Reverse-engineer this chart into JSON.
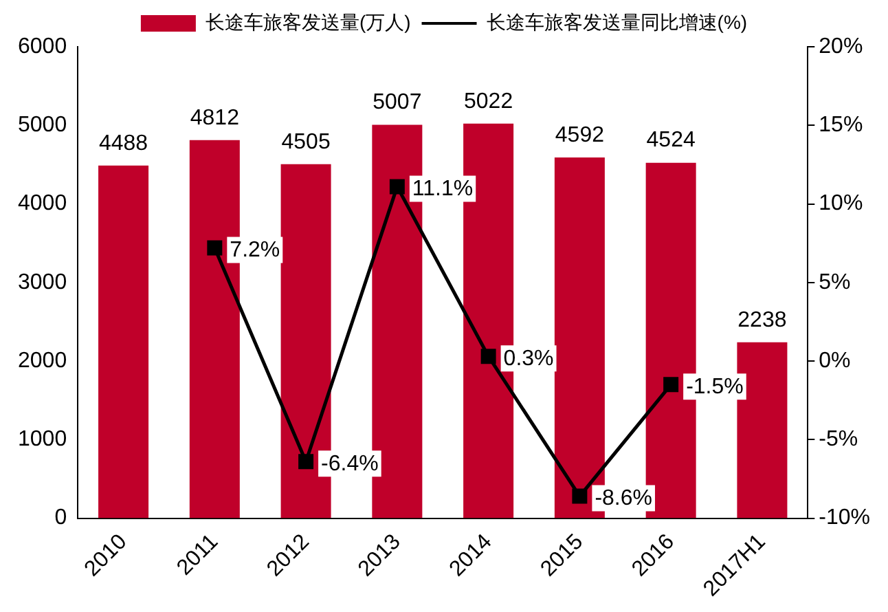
{
  "chart_data": {
    "type": "bar",
    "categories": [
      "2010",
      "2011",
      "2012",
      "2013",
      "2014",
      "2015",
      "2016",
      "2017H1"
    ],
    "series": [
      {
        "name": "长途车旅客发送量(万人)",
        "color": "#c0002a",
        "values": [
          4488,
          4812,
          4505,
          5007,
          5022,
          4592,
          4524,
          2238
        ],
        "value_labels": [
          "4488",
          "4812",
          "4505",
          "5007",
          "5022",
          "4592",
          "4524",
          "2238"
        ]
      },
      {
        "name": "长途车旅客发送量同比增速(%)",
        "type": "line",
        "axis": "y2",
        "color": "#000000",
        "values": [
          null,
          7.2,
          -6.4,
          11.1,
          0.3,
          -8.6,
          -1.5,
          null
        ],
        "value_labels": [
          null,
          "7.2%",
          "-6.4%",
          "11.1%",
          "0.3%",
          "-8.6%",
          "-1.5%",
          null
        ]
      }
    ],
    "ylim": [
      0,
      6000
    ],
    "yticks": [
      0,
      1000,
      2000,
      3000,
      4000,
      5000,
      6000
    ],
    "y2lim": [
      -10,
      20
    ],
    "y2ticks": [
      {
        "value": -10,
        "label": "-10%"
      },
      {
        "value": -5,
        "label": "-5%"
      },
      {
        "value": 0,
        "label": "0%"
      },
      {
        "value": 5,
        "label": "5%"
      },
      {
        "value": 10,
        "label": "10%"
      },
      {
        "value": 15,
        "label": "15%"
      },
      {
        "value": 20,
        "label": "20%"
      }
    ],
    "grid": false,
    "legend": "top",
    "marker": "square",
    "line_style": "solid"
  }
}
